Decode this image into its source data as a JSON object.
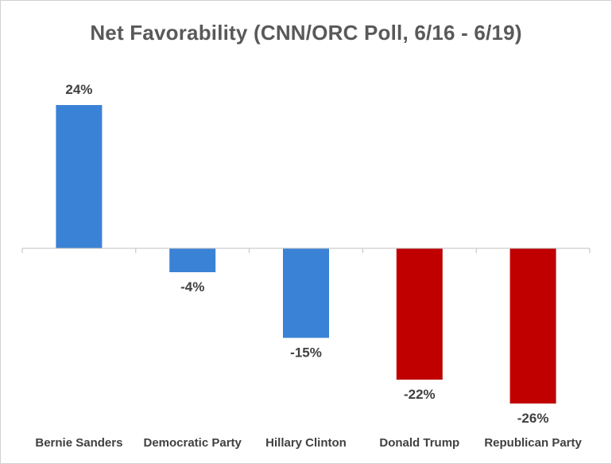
{
  "chart_data": {
    "type": "bar",
    "title": "Net Favorability (CNN/ORC Poll, 6/16 - 6/19)",
    "xlabel": "",
    "ylabel": "",
    "categories": [
      "Bernie Sanders",
      "Democratic Party",
      "Hillary Clinton",
      "Donald Trump",
      "Republican Party"
    ],
    "values": [
      24,
      -4,
      -15,
      -22,
      -26
    ],
    "data_labels": [
      "24%",
      "-4%",
      "-15%",
      "-22%",
      "-26%"
    ],
    "bar_colors": [
      "#3a82d6",
      "#3a82d6",
      "#3a82d6",
      "#c00000",
      "#c00000"
    ],
    "ylim": [
      -30,
      30
    ],
    "grid": false,
    "legend": "none"
  }
}
